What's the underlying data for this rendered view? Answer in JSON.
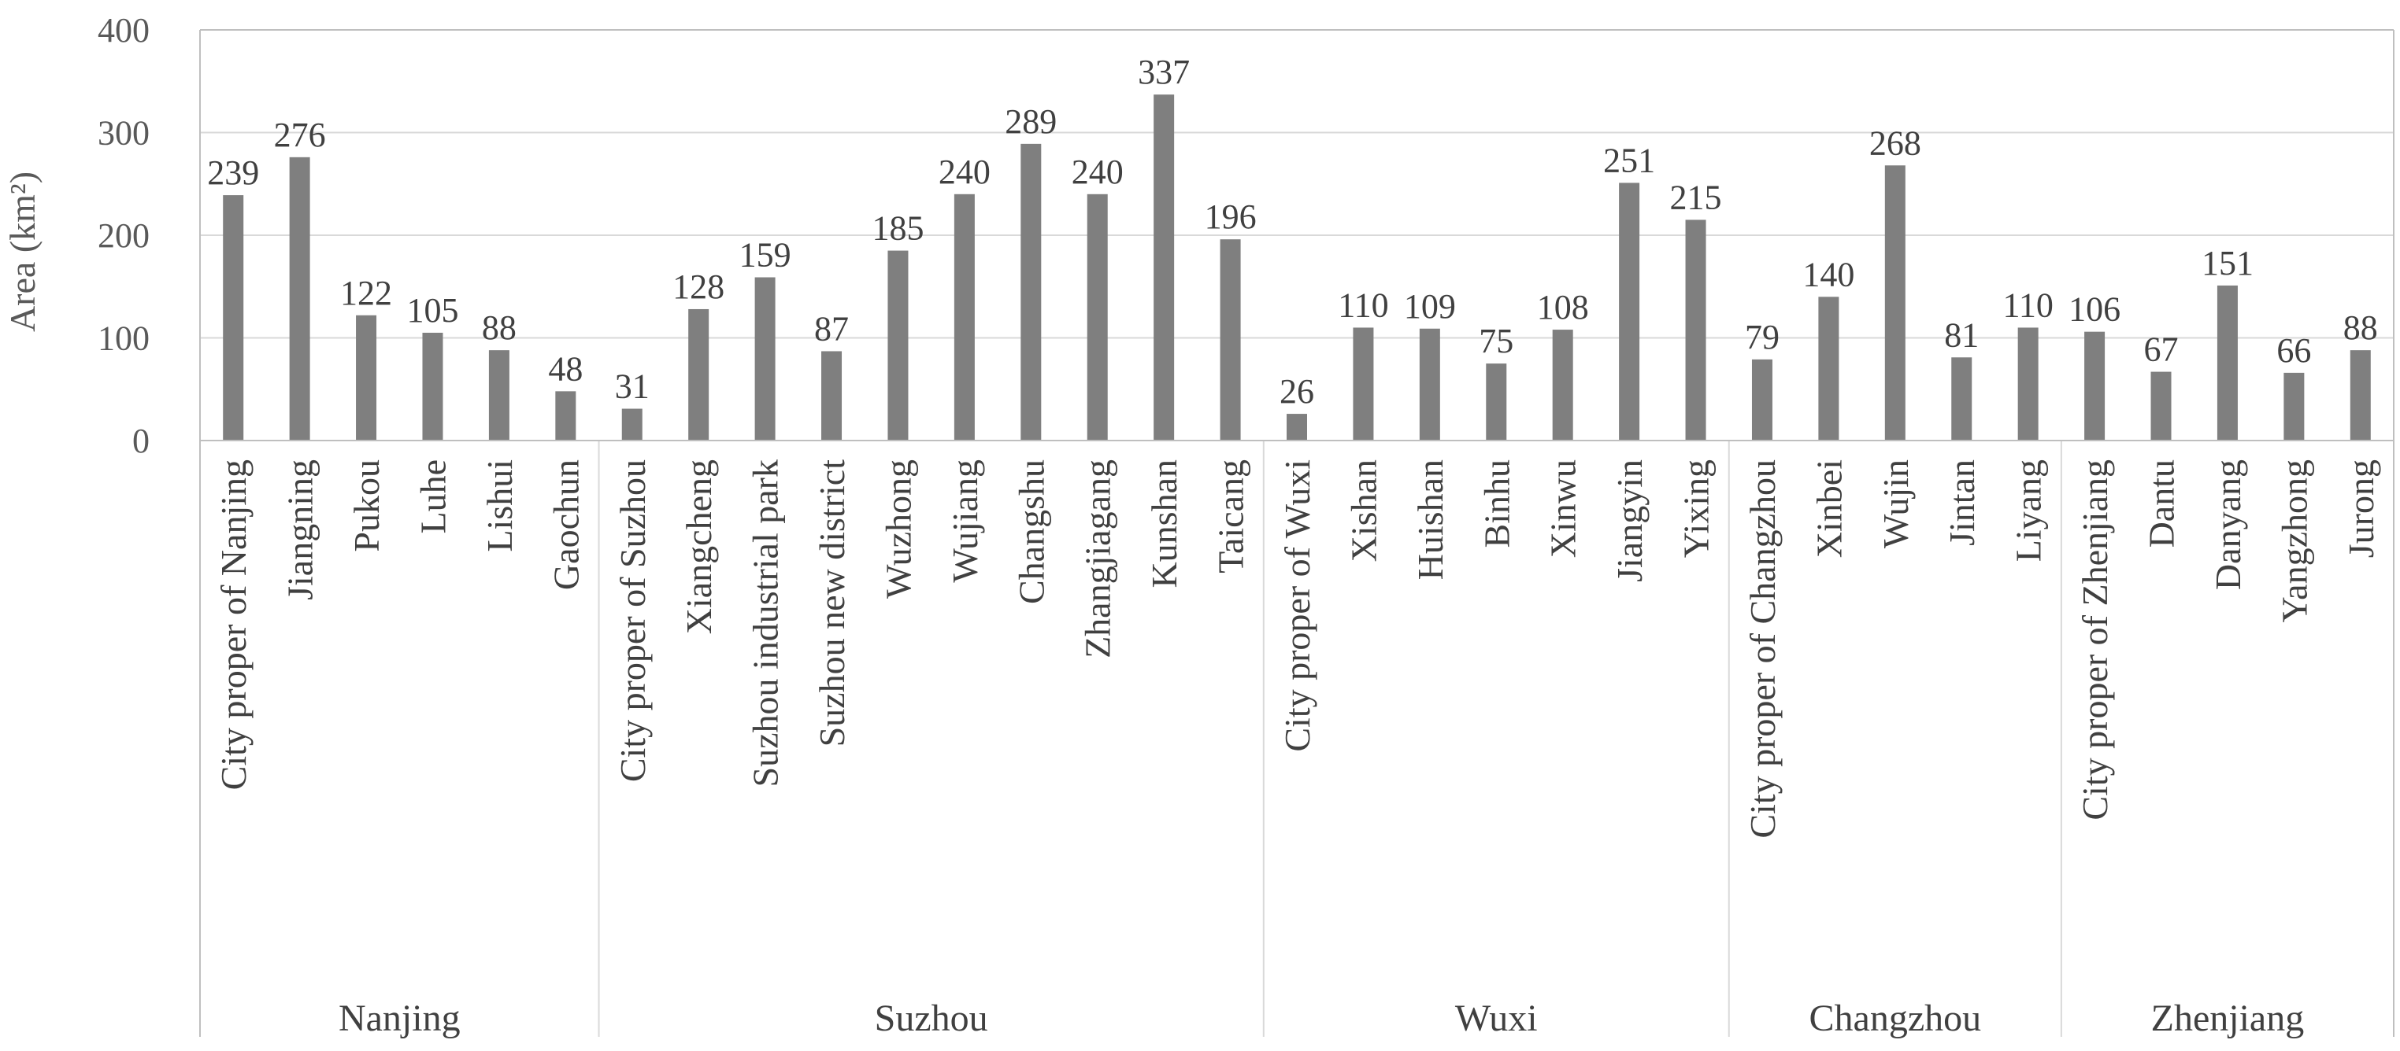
{
  "chart_data": {
    "type": "bar",
    "title": "",
    "xlabel": "",
    "ylabel": "Area (km²)",
    "ylim": [
      0,
      400
    ],
    "yticks": [
      0,
      100,
      200,
      300,
      400
    ],
    "grid": true,
    "legend": "none",
    "bar_color": "#7f7f7f",
    "groups": [
      {
        "name": "Nanjing",
        "categories": [
          "City proper of Nanjing",
          "Jiangning",
          "Pukou",
          "Luhe",
          "Lishui",
          "Gaochun"
        ],
        "values": [
          239,
          276,
          122,
          105,
          88,
          48
        ]
      },
      {
        "name": "Suzhou",
        "categories": [
          "City proper of Suzhou",
          "Xiangcheng",
          "Suzhou industrial park",
          "Suzhou new district",
          "Wuzhong",
          "Wujiang",
          "Changshu",
          "Zhangjiagang",
          "Kunshan",
          "Taicang"
        ],
        "values": [
          31,
          128,
          159,
          87,
          185,
          240,
          289,
          240,
          337,
          196
        ]
      },
      {
        "name": "Wuxi",
        "categories": [
          "City proper of Wuxi",
          "Xishan",
          "Huishan",
          "Binhu",
          "Xinwu",
          "Jiangyin",
          "Yixing"
        ],
        "values": [
          26,
          110,
          109,
          75,
          108,
          251,
          215
        ]
      },
      {
        "name": "Changzhou",
        "categories": [
          "City proper of Changzhou",
          "Xinbei",
          "Wujin",
          "Jintan",
          "Liyang"
        ],
        "values": [
          79,
          140,
          268,
          81,
          110
        ]
      },
      {
        "name": "Zhenjiang",
        "categories": [
          "City proper of Zhenjiang",
          "Dantu",
          "Danyang",
          "Yangzhong",
          "Jurong"
        ],
        "values": [
          106,
          67,
          151,
          66,
          88
        ]
      }
    ]
  }
}
